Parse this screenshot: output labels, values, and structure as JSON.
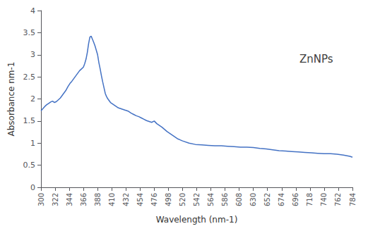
{
  "chart_data": {
    "type": "line",
    "xlabel": "Wavelength (nm-1)",
    "ylabel": "Absorbance nm-1",
    "annotation": "ZnNPs",
    "color": "#4472C4",
    "grid": false,
    "xlim": [
      300,
      784
    ],
    "ylim": [
      0,
      4
    ],
    "xticks": [
      300,
      322,
      344,
      366,
      388,
      410,
      432,
      454,
      476,
      498,
      520,
      542,
      564,
      586,
      608,
      630,
      652,
      674,
      696,
      718,
      740,
      762,
      784
    ],
    "yticks": [
      0,
      0.5,
      1,
      1.5,
      2,
      2.5,
      3,
      3.5,
      4
    ],
    "x": [
      300,
      303,
      306,
      309,
      312,
      315,
      318,
      321,
      324,
      327,
      330,
      333,
      336,
      339,
      342,
      345,
      348,
      351,
      354,
      357,
      360,
      363,
      366,
      368,
      370,
      372,
      374,
      376,
      378,
      380,
      382,
      384,
      386,
      388,
      390,
      392,
      394,
      396,
      398,
      400,
      402,
      404,
      406,
      408,
      410,
      412,
      414,
      416,
      418,
      420,
      422,
      424,
      426,
      428,
      430,
      432,
      436,
      440,
      444,
      448,
      452,
      456,
      460,
      464,
      468,
      472,
      476,
      480,
      488,
      496,
      504,
      512,
      520,
      530,
      540,
      550,
      560,
      570,
      580,
      590,
      600,
      610,
      620,
      630,
      640,
      650,
      660,
      670,
      680,
      690,
      700,
      710,
      720,
      730,
      740,
      750,
      760,
      770,
      780,
      784
    ],
    "values": [
      1.73,
      1.78,
      1.83,
      1.87,
      1.9,
      1.93,
      1.95,
      1.92,
      1.94,
      1.98,
      2.02,
      2.08,
      2.14,
      2.2,
      2.28,
      2.35,
      2.4,
      2.46,
      2.52,
      2.58,
      2.64,
      2.68,
      2.72,
      2.8,
      2.9,
      3.05,
      3.25,
      3.4,
      3.42,
      3.35,
      3.28,
      3.2,
      3.1,
      3.0,
      2.82,
      2.68,
      2.52,
      2.38,
      2.25,
      2.12,
      2.05,
      2.0,
      1.96,
      1.92,
      1.9,
      1.88,
      1.86,
      1.84,
      1.82,
      1.8,
      1.79,
      1.78,
      1.77,
      1.76,
      1.75,
      1.74,
      1.72,
      1.68,
      1.65,
      1.62,
      1.6,
      1.57,
      1.54,
      1.51,
      1.49,
      1.47,
      1.5,
      1.44,
      1.36,
      1.26,
      1.18,
      1.1,
      1.05,
      1.0,
      0.97,
      0.96,
      0.95,
      0.94,
      0.94,
      0.93,
      0.92,
      0.91,
      0.91,
      0.9,
      0.88,
      0.87,
      0.85,
      0.83,
      0.82,
      0.81,
      0.8,
      0.79,
      0.78,
      0.77,
      0.76,
      0.76,
      0.75,
      0.73,
      0.7,
      0.68
    ]
  }
}
